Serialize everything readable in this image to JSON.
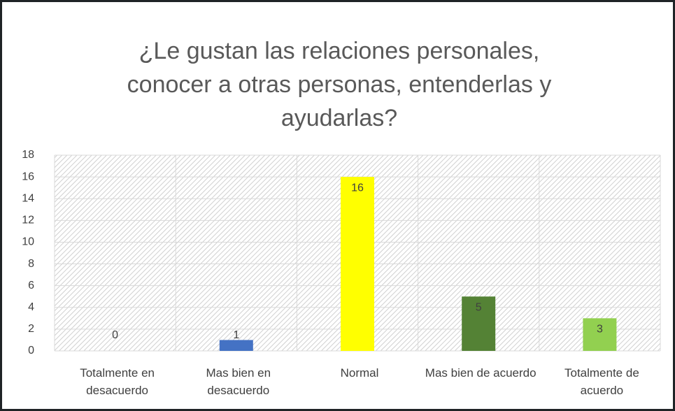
{
  "chart_data": {
    "type": "bar",
    "title": "¿Le gustan las relaciones personales, conocer a otras personas, entenderlas y ayudarlas?",
    "categories": [
      "Totalmente en desacuerdo",
      "Mas bien en desacuerdo",
      "Normal",
      "Mas bien de acuerdo",
      "Totalmente de acuerdo"
    ],
    "values": [
      0,
      1,
      16,
      5,
      3
    ],
    "colors": [
      "#4472c4",
      "#4472c4",
      "#ffff00",
      "#548235",
      "#92d050"
    ],
    "ylim": [
      0,
      18
    ],
    "yticks": [
      0,
      2,
      4,
      6,
      8,
      10,
      12,
      14,
      16,
      18
    ],
    "grid": true
  }
}
